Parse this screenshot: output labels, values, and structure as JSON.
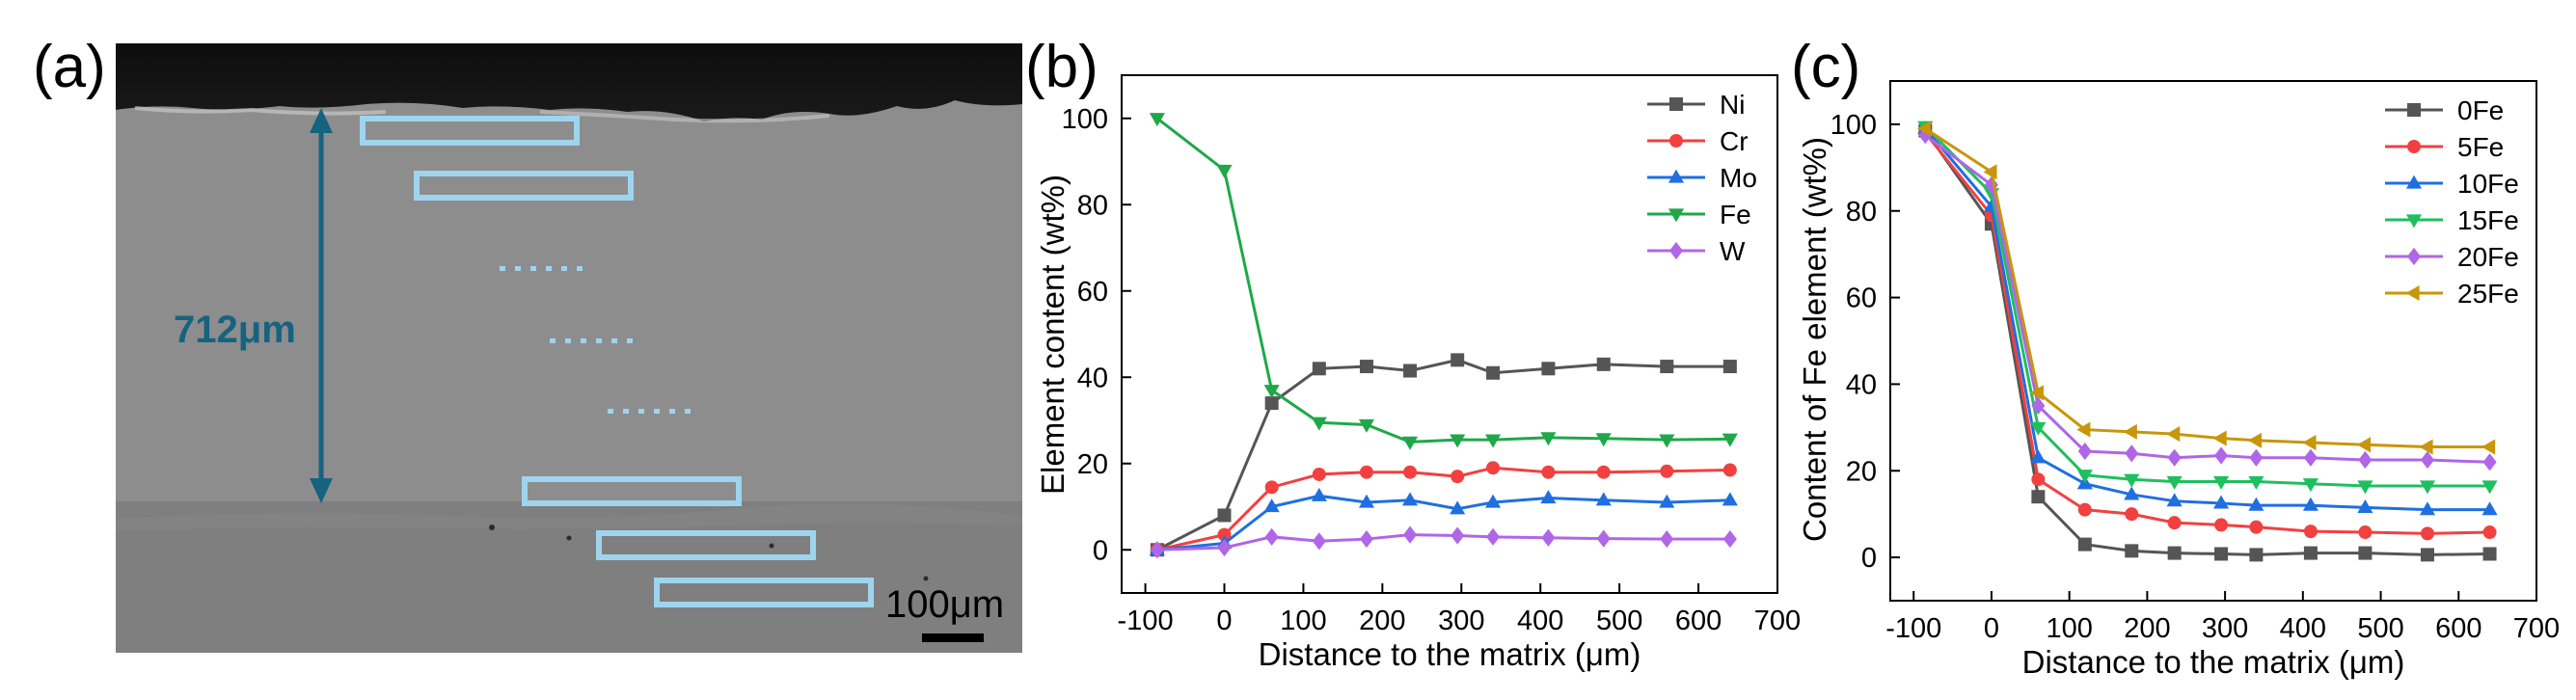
{
  "colors": {
    "Ni": "#555555",
    "Cr": "#f24040",
    "Mo": "#1f6fe0",
    "Fe": "#1fa84a",
    "W": "#b066e6",
    "0Fe": "#555555",
    "5Fe": "#f24040",
    "10Fe": "#1f6fe0",
    "15Fe": "#1fbf5f",
    "20Fe": "#b066e6",
    "25Fe": "#c8960a",
    "scale_label": "#16637f",
    "boxes": "#9fd4ee"
  },
  "panel_a": {
    "label": "(a)",
    "thickness_label": "712μm",
    "scale_bar_label": "100μm"
  },
  "chart_data": [
    {
      "id": "b",
      "panel_label": "(b)",
      "type": "line",
      "xlabel": "Distance to the matrix (μm)",
      "ylabel": "Element content (wt%)",
      "xlim": [
        -130,
        700
      ],
      "ylim": [
        -10,
        110
      ],
      "xticks": [
        -100,
        0,
        100,
        200,
        300,
        400,
        500,
        600,
        700
      ],
      "yticks": [
        0,
        20,
        40,
        60,
        80,
        100
      ],
      "legend_position": "top-right",
      "x": [
        -85,
        0,
        60,
        120,
        180,
        235,
        295,
        340,
        410,
        480,
        560,
        640
      ],
      "series": [
        {
          "name": "Ni",
          "marker": "square",
          "values": [
            0,
            8,
            34,
            42,
            42.5,
            41.5,
            44,
            41,
            42,
            43,
            42.5,
            42.5
          ]
        },
        {
          "name": "Cr",
          "marker": "circle",
          "values": [
            0,
            3.5,
            14.5,
            17.5,
            18,
            18,
            17,
            19,
            18,
            18,
            18.2,
            18.5
          ]
        },
        {
          "name": "Mo",
          "marker": "triangle-up",
          "values": [
            0,
            1.5,
            10,
            12.5,
            11,
            11.5,
            9.5,
            11,
            12,
            11.5,
            11,
            11.5
          ]
        },
        {
          "name": "Fe",
          "marker": "triangle-down",
          "values": [
            100,
            88,
            37,
            29.5,
            29,
            25,
            25.5,
            25.5,
            26,
            25.8,
            25.5,
            25.7
          ]
        },
        {
          "name": "W",
          "marker": "diamond",
          "values": [
            0,
            0.5,
            3,
            2,
            2.5,
            3.5,
            3.3,
            3,
            2.8,
            2.6,
            2.5,
            2.5
          ]
        }
      ]
    },
    {
      "id": "c",
      "panel_label": "(c)",
      "type": "line",
      "xlabel": "Distance to the matrix (μm)",
      "ylabel": "Content of Fe element (wt%)",
      "xlim": [
        -130,
        700
      ],
      "ylim": [
        -10,
        110
      ],
      "xticks": [
        -100,
        0,
        100,
        200,
        300,
        400,
        500,
        600,
        700
      ],
      "yticks": [
        0,
        20,
        40,
        60,
        80,
        100
      ],
      "legend_position": "top-right",
      "x": [
        -85,
        0,
        60,
        120,
        180,
        235,
        295,
        340,
        410,
        480,
        560,
        640
      ],
      "series": [
        {
          "name": "0Fe",
          "marker": "square",
          "values": [
            98.5,
            77,
            14,
            3,
            1.5,
            1,
            0.8,
            0.6,
            1,
            1,
            0.6,
            0.8
          ]
        },
        {
          "name": "5Fe",
          "marker": "circle",
          "values": [
            98,
            79,
            18,
            11,
            10,
            8,
            7.5,
            7,
            6,
            5.8,
            5.5,
            5.8
          ]
        },
        {
          "name": "10Fe",
          "marker": "triangle-up",
          "values": [
            99,
            81,
            23,
            17,
            14.5,
            13,
            12.5,
            12,
            12,
            11.5,
            11,
            11
          ]
        },
        {
          "name": "15Fe",
          "marker": "triangle-down",
          "values": [
            99.5,
            84,
            30,
            19,
            18,
            17.5,
            17.5,
            17.5,
            17,
            16.5,
            16.5,
            16.5
          ]
        },
        {
          "name": "20Fe",
          "marker": "diamond",
          "values": [
            97.5,
            86,
            35,
            24.5,
            24,
            23,
            23.5,
            23,
            23,
            22.5,
            22.5,
            22
          ]
        },
        {
          "name": "25Fe",
          "marker": "triangle-left",
          "values": [
            99,
            89,
            38,
            29.5,
            29,
            28.5,
            27.5,
            27,
            26.5,
            26,
            25.5,
            25.5
          ]
        }
      ]
    }
  ]
}
